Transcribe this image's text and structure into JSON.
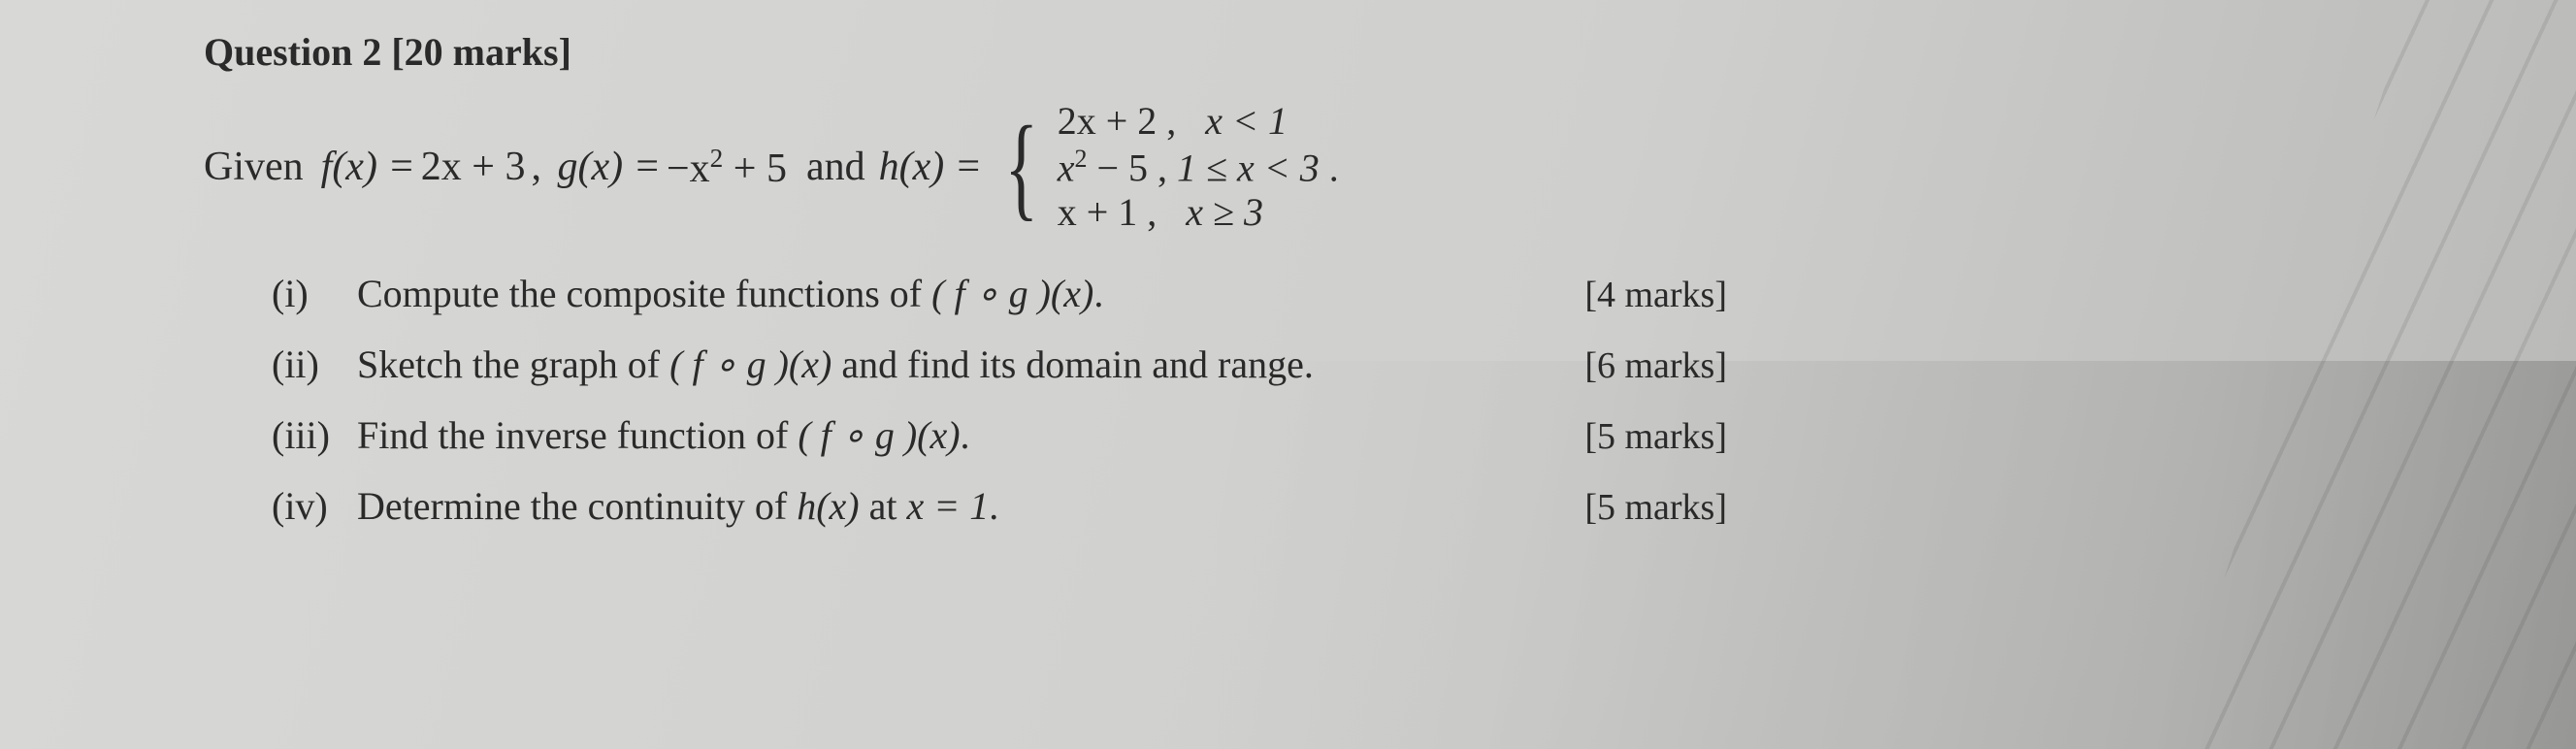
{
  "question": {
    "number": "Question 2",
    "marks_total": "[20 marks]"
  },
  "given": {
    "prefix": "Given",
    "f_lhs": "f(x) =",
    "f_rhs": "2x + 3",
    "g_lhs": "g(x) =",
    "g_rhs_pre": "−x",
    "g_rhs_exp": "2",
    "g_rhs_post": " + 5",
    "and": "and",
    "h_lhs": "h(x) =",
    "piece1_expr": "2x + 2 ,",
    "piece1_cond": "x < 1",
    "piece2_pre": "x",
    "piece2_exp": "2",
    "piece2_post": " − 5 ,",
    "piece2_cond": "1 ≤ x < 3",
    "piece3_expr": "x + 1  ,",
    "piece3_cond": "x ≥ 3",
    "tail": "."
  },
  "parts": {
    "i": {
      "roman": "(i)",
      "text_a": "Compute the composite functions of ",
      "fn": "( f ∘ g )(x)",
      "text_b": ".",
      "marks": "[4 marks]"
    },
    "ii": {
      "roman": "(ii)",
      "text_a": "Sketch the graph of ",
      "fn": "( f ∘ g )(x)",
      "text_b": " and find its domain and range.",
      "marks": "[6 marks]"
    },
    "iii": {
      "roman": "(iii)",
      "text_a": "Find the inverse function of ",
      "fn": "( f ∘ g )(x)",
      "text_b": ".",
      "marks": "[5 marks]"
    },
    "iv": {
      "roman": "(iv)",
      "text_a": "Determine the continuity of ",
      "fn": "h(x)",
      "text_b": " at ",
      "eq": "x = 1",
      "text_c": ".",
      "marks": "[5 marks]"
    }
  },
  "style": {
    "background_color": "#d4d4d2",
    "text_color": "#2a2a2a",
    "title_fontsize_pt": 30,
    "body_fontsize_pt": 30,
    "font_family": "Times New Roman"
  }
}
